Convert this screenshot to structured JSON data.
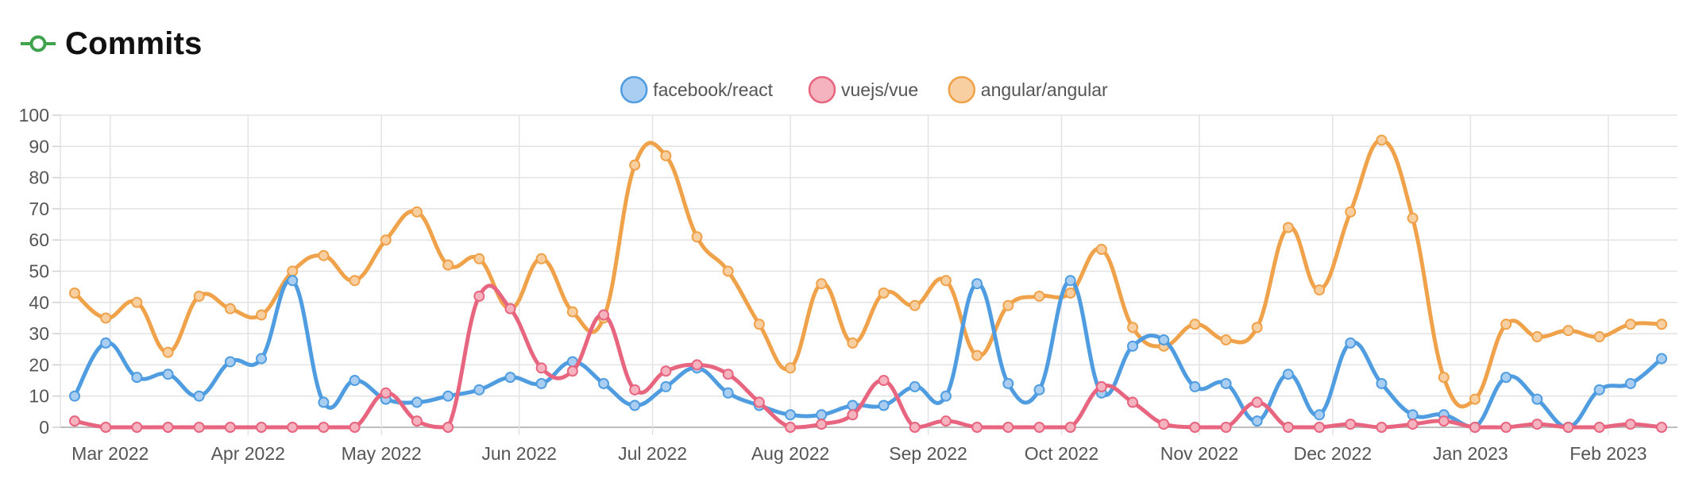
{
  "header": {
    "title": "Commits",
    "icon": "git-commit-icon",
    "icon_color": "#3fa34d"
  },
  "chart_data": {
    "type": "line",
    "title": "Commits",
    "xlabel": "",
    "ylabel": "",
    "ylim": [
      0,
      100
    ],
    "yticks": [
      0,
      10,
      20,
      30,
      40,
      50,
      60,
      70,
      80,
      90,
      100
    ],
    "x_range": [
      "2022-02-21",
      "2023-02-13"
    ],
    "x_ticks": [
      {
        "date": "2022-03-01",
        "label": "Mar 2022"
      },
      {
        "date": "2022-04-01",
        "label": "Apr 2022"
      },
      {
        "date": "2022-05-01",
        "label": "May 2022"
      },
      {
        "date": "2022-06-01",
        "label": "Jun 2022"
      },
      {
        "date": "2022-07-01",
        "label": "Jul 2022"
      },
      {
        "date": "2022-08-01",
        "label": "Aug 2022"
      },
      {
        "date": "2022-09-01",
        "label": "Sep 2022"
      },
      {
        "date": "2022-10-01",
        "label": "Oct 2022"
      },
      {
        "date": "2022-11-01",
        "label": "Nov 2022"
      },
      {
        "date": "2022-12-01",
        "label": "Dec 2022"
      },
      {
        "date": "2023-01-01",
        "label": "Jan 2023"
      },
      {
        "date": "2023-02-01",
        "label": "Feb 2023"
      }
    ],
    "grid": true,
    "legend_position": "top-center",
    "x": [
      "2022-02-21",
      "2022-02-28",
      "2022-03-07",
      "2022-03-14",
      "2022-03-21",
      "2022-03-28",
      "2022-04-04",
      "2022-04-11",
      "2022-04-18",
      "2022-04-25",
      "2022-05-02",
      "2022-05-09",
      "2022-05-16",
      "2022-05-23",
      "2022-05-30",
      "2022-06-06",
      "2022-06-13",
      "2022-06-20",
      "2022-06-27",
      "2022-07-04",
      "2022-07-11",
      "2022-07-18",
      "2022-07-25",
      "2022-08-01",
      "2022-08-08",
      "2022-08-15",
      "2022-08-22",
      "2022-08-29",
      "2022-09-05",
      "2022-09-12",
      "2022-09-19",
      "2022-09-26",
      "2022-10-03",
      "2022-10-10",
      "2022-10-17",
      "2022-10-24",
      "2022-10-31",
      "2022-11-07",
      "2022-11-14",
      "2022-11-21",
      "2022-11-28",
      "2022-12-05",
      "2022-12-12",
      "2022-12-19",
      "2022-12-26",
      "2023-01-02",
      "2023-01-09",
      "2023-01-16",
      "2023-01-23",
      "2023-01-30",
      "2023-02-06",
      "2023-02-13"
    ],
    "series": [
      {
        "name": "facebook/react",
        "color": "#4f9de0",
        "fill": "#a9cef2",
        "values": [
          10,
          27,
          16,
          17,
          10,
          21,
          22,
          47,
          8,
          15,
          9,
          8,
          10,
          12,
          16,
          14,
          21,
          14,
          7,
          13,
          19,
          11,
          7,
          4,
          4,
          7,
          7,
          13,
          10,
          46,
          14,
          12,
          47,
          11,
          26,
          28,
          13,
          14,
          2,
          17,
          4,
          27,
          14,
          4,
          4,
          0,
          16,
          9,
          0,
          12,
          14,
          22
        ]
      },
      {
        "name": "vuejs/vue",
        "color": "#e8657f",
        "fill": "#f5b3c0",
        "values": [
          2,
          0,
          0,
          0,
          0,
          0,
          0,
          0,
          0,
          0,
          11,
          2,
          0,
          42,
          38,
          19,
          18,
          36,
          12,
          18,
          20,
          17,
          8,
          0,
          1,
          4,
          15,
          0,
          2,
          0,
          0,
          0,
          0,
          13,
          8,
          1,
          0,
          0,
          8,
          0,
          0,
          1,
          0,
          1,
          2,
          0,
          0,
          1,
          0,
          0,
          1,
          0
        ]
      },
      {
        "name": "angular/angular",
        "color": "#f0a24a",
        "fill": "#f7cfa0",
        "values": [
          43,
          35,
          40,
          24,
          42,
          38,
          36,
          50,
          55,
          47,
          60,
          69,
          52,
          54,
          38,
          54,
          37,
          35,
          84,
          87,
          61,
          50,
          33,
          19,
          46,
          27,
          43,
          39,
          47,
          23,
          39,
          42,
          43,
          57,
          32,
          26,
          33,
          28,
          32,
          64,
          44,
          69,
          92,
          67,
          16,
          9,
          33,
          29,
          31,
          29,
          33,
          33
        ]
      }
    ]
  }
}
